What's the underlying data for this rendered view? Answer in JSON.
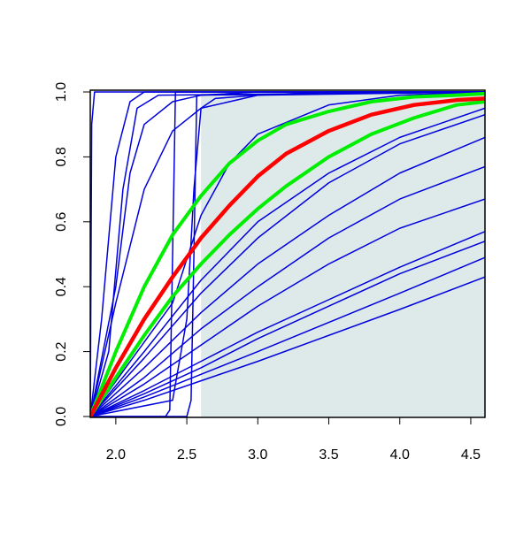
{
  "chart_data": {
    "type": "line",
    "xlim": [
      1.82,
      4.6
    ],
    "ylim": [
      0,
      1
    ],
    "xticks": [
      {
        "value": 2,
        "label": "2.0"
      },
      2.5,
      {
        "value": 3,
        "label": "3.0"
      },
      3.5,
      {
        "value": 4,
        "label": "4.0"
      },
      4.5
    ],
    "yticks": [
      {
        "value": 0,
        "label": "0.0"
      },
      0.2,
      0.4,
      0.6,
      0.8,
      {
        "value": 1,
        "label": "1.0"
      }
    ],
    "shaded_region": {
      "x": [
        2.6,
        4.6
      ],
      "y": [
        0,
        1
      ],
      "color": "#deeaea"
    },
    "series": [
      {
        "color": "#0000dd",
        "width": 1.5,
        "x": [
          1.82,
          1.83,
          1.85,
          4.6
        ],
        "values": [
          0,
          0.9,
          1,
          1
        ]
      },
      {
        "color": "#0000dd",
        "width": 1.5,
        "x": [
          1.82,
          1.9,
          2.0,
          2.1,
          2.2,
          4.6
        ],
        "values": [
          0,
          0.3,
          0.8,
          0.97,
          1,
          1
        ]
      },
      {
        "color": "#0000dd",
        "width": 1.5,
        "x": [
          1.82,
          1.95,
          2.05,
          2.15,
          2.3,
          4.6
        ],
        "values": [
          0,
          0.2,
          0.7,
          0.95,
          0.99,
          1
        ]
      },
      {
        "color": "#0000dd",
        "width": 1.5,
        "x": [
          1.82,
          2.0,
          2.1,
          2.2,
          2.4,
          2.6,
          3.0,
          4.6
        ],
        "values": [
          0,
          0.4,
          0.75,
          0.9,
          0.97,
          0.99,
          1,
          1
        ]
      },
      {
        "color": "#0000dd",
        "width": 1.5,
        "x": [
          1.82,
          2.0,
          2.2,
          2.4,
          2.6,
          3.0,
          3.5,
          4.6
        ],
        "values": [
          0,
          0.35,
          0.7,
          0.88,
          0.95,
          0.99,
          1,
          1
        ]
      },
      {
        "color": "#0000dd",
        "width": 1.5,
        "x": [
          1.82,
          2.35,
          2.38,
          2.4,
          2.42,
          4.6
        ],
        "values": [
          0,
          0,
          0.02,
          0.5,
          1,
          1
        ]
      },
      {
        "color": "#0000dd",
        "width": 1.5,
        "x": [
          1.82,
          2.5,
          2.53,
          2.55,
          2.57,
          4.6
        ],
        "values": [
          0,
          0,
          0.05,
          0.5,
          0.99,
          1
        ]
      },
      {
        "color": "#0000dd",
        "width": 1.5,
        "x": [
          1.82,
          2.4,
          2.5,
          2.55,
          2.6,
          2.7,
          3.0,
          4.6
        ],
        "values": [
          0,
          0.05,
          0.3,
          0.7,
          0.95,
          0.98,
          0.99,
          1
        ]
      },
      {
        "color": "#0000dd",
        "width": 1.5,
        "x": [
          1.82,
          2.4,
          2.6,
          2.8,
          3.0,
          3.5,
          4.0,
          4.6
        ],
        "values": [
          0,
          0.35,
          0.62,
          0.78,
          0.87,
          0.96,
          0.99,
          1
        ]
      },
      {
        "color": "#0000dd",
        "width": 1.5,
        "x": [
          1.82,
          2.2,
          2.6,
          3.0,
          3.5,
          4.0,
          4.6
        ],
        "values": [
          0,
          0.15,
          0.32,
          0.47,
          0.62,
          0.75,
          0.86
        ]
      },
      {
        "color": "#0000dd",
        "width": 1.5,
        "x": [
          1.82,
          2.2,
          2.6,
          3.0,
          3.5,
          4.0,
          4.6
        ],
        "values": [
          0,
          0.18,
          0.38,
          0.55,
          0.72,
          0.84,
          0.93
        ]
      },
      {
        "color": "#0000dd",
        "width": 1.5,
        "x": [
          1.82,
          2.2,
          2.6,
          3.0,
          3.5,
          4.0,
          4.6
        ],
        "values": [
          0,
          0.12,
          0.27,
          0.4,
          0.55,
          0.67,
          0.77
        ]
      },
      {
        "color": "#0000dd",
        "width": 1.5,
        "x": [
          1.82,
          2.2,
          2.6,
          3.0,
          3.5,
          4.0,
          4.6
        ],
        "values": [
          0,
          0.08,
          0.17,
          0.26,
          0.36,
          0.46,
          0.57
        ]
      },
      {
        "color": "#0000dd",
        "width": 1.5,
        "x": [
          1.82,
          2.2,
          2.6,
          3.0,
          3.5,
          4.0,
          4.6
        ],
        "values": [
          0,
          0.06,
          0.13,
          0.2,
          0.29,
          0.38,
          0.49
        ]
      },
      {
        "color": "#0000dd",
        "width": 1.5,
        "x": [
          1.82,
          2.2,
          2.6,
          3.0,
          3.5,
          4.0,
          4.6
        ],
        "values": [
          0,
          0.05,
          0.11,
          0.17,
          0.25,
          0.33,
          0.43
        ]
      },
      {
        "color": "#0000dd",
        "width": 1.5,
        "x": [
          1.82,
          2.2,
          2.6,
          3.0,
          3.5,
          4.0,
          4.6
        ],
        "values": [
          0,
          0.2,
          0.42,
          0.6,
          0.75,
          0.86,
          0.95
        ]
      },
      {
        "color": "#0000dd",
        "width": 1.5,
        "x": [
          1.82,
          2.2,
          2.6,
          3.0,
          3.5,
          4.0,
          4.6
        ],
        "values": [
          0,
          0.1,
          0.22,
          0.34,
          0.47,
          0.58,
          0.67
        ]
      },
      {
        "color": "#0000dd",
        "width": 1.5,
        "x": [
          1.82,
          2.2,
          2.6,
          3.0,
          3.5,
          4.0,
          4.6
        ],
        "values": [
          0,
          0.07,
          0.15,
          0.24,
          0.34,
          0.44,
          0.54
        ]
      },
      {
        "color": "#00ee00",
        "width": 4,
        "x": [
          1.82,
          2.0,
          2.2,
          2.4,
          2.6,
          2.8,
          3.0,
          3.2,
          3.5,
          3.8,
          4.1,
          4.4,
          4.6
        ],
        "values": [
          0,
          0.2,
          0.4,
          0.56,
          0.68,
          0.78,
          0.85,
          0.9,
          0.94,
          0.97,
          0.985,
          0.99,
          0.995
        ]
      },
      {
        "color": "#00ee00",
        "width": 4,
        "x": [
          1.82,
          2.0,
          2.2,
          2.4,
          2.6,
          2.8,
          3.0,
          3.2,
          3.5,
          3.8,
          4.1,
          4.4,
          4.6
        ],
        "values": [
          0,
          0.12,
          0.25,
          0.37,
          0.47,
          0.56,
          0.64,
          0.71,
          0.8,
          0.87,
          0.92,
          0.96,
          0.97
        ]
      },
      {
        "color": "#ff0000",
        "width": 4.5,
        "x": [
          1.82,
          2.0,
          2.2,
          2.4,
          2.6,
          2.8,
          3.0,
          3.2,
          3.5,
          3.8,
          4.1,
          4.4,
          4.6
        ],
        "values": [
          0,
          0.15,
          0.3,
          0.43,
          0.55,
          0.65,
          0.74,
          0.81,
          0.88,
          0.93,
          0.96,
          0.975,
          0.98
        ]
      }
    ]
  }
}
